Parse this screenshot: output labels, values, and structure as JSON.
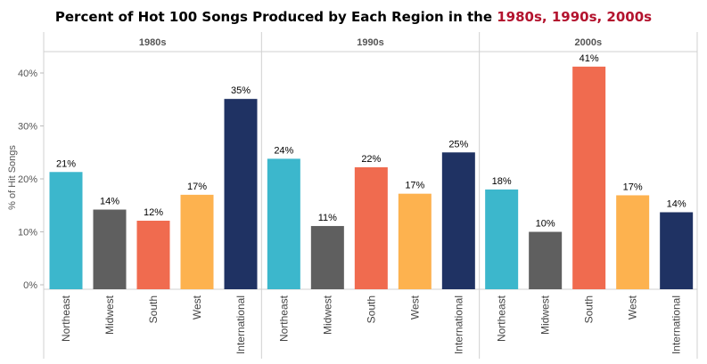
{
  "title": {
    "prefix": "Percent of Hot 100 Songs Produced by Each Region in the ",
    "highlight": "1980s, 1990s, 2000s"
  },
  "colors": {
    "Northeast": "#3cb7cc",
    "Midwest": "#5f5f5f",
    "South": "#f06b4f",
    "West": "#fdb24f",
    "International": "#1f3263"
  },
  "chart_data": {
    "type": "bar",
    "ylabel": "% of Hit Songs",
    "ylim": [
      0,
      45
    ],
    "yticks": [
      0,
      10,
      20,
      30,
      40
    ],
    "ytick_labels": [
      "0%",
      "10%",
      "20%",
      "30%",
      "40%"
    ],
    "categories": [
      "Northeast",
      "Midwest",
      "South",
      "West",
      "International"
    ],
    "panels": [
      {
        "name": "1980s",
        "values": [
          21.3,
          14.2,
          12.1,
          17.0,
          35.1
        ],
        "labels": [
          "21%",
          "14%",
          "12%",
          "17%",
          "35%"
        ]
      },
      {
        "name": "1990s",
        "values": [
          23.8,
          11.1,
          22.2,
          17.2,
          25.0
        ],
        "labels": [
          "24%",
          "11%",
          "22%",
          "17%",
          "25%"
        ]
      },
      {
        "name": "2000s",
        "values": [
          18.0,
          10.0,
          41.2,
          16.9,
          13.7
        ],
        "labels": [
          "18%",
          "10%",
          "41%",
          "17%",
          "14%"
        ]
      }
    ],
    "grid": false,
    "legend": "none"
  }
}
